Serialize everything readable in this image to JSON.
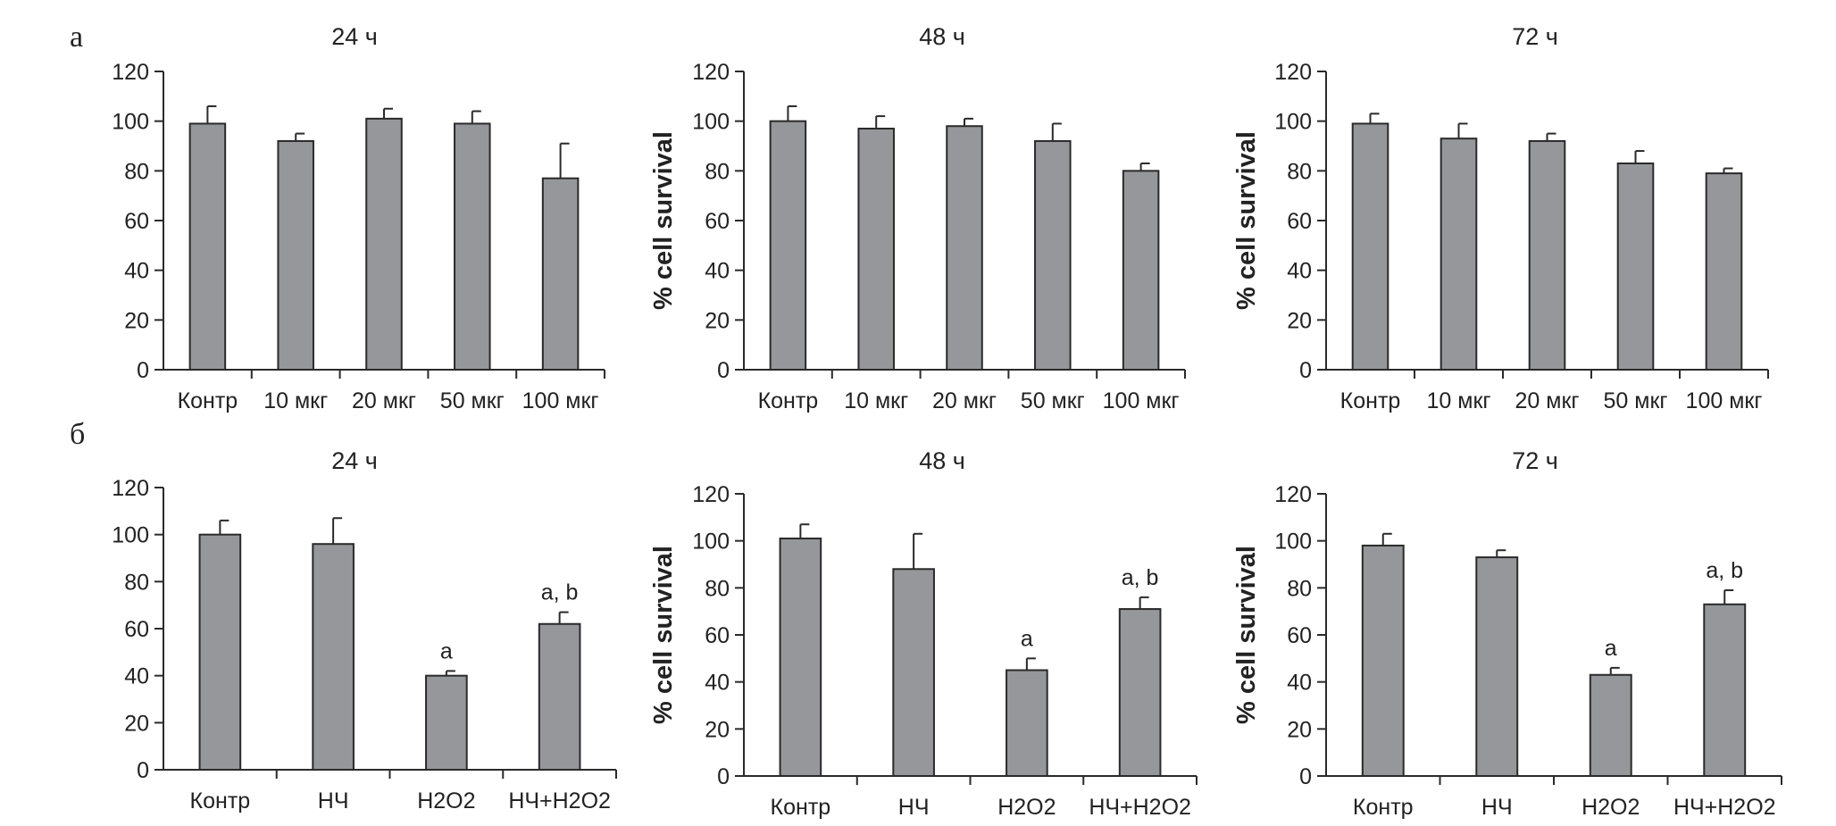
{
  "colors": {
    "bar_fill": "#96979a",
    "bar_stroke": "#2a2a2a",
    "axis": "#2a2a2a",
    "text": "#222222"
  },
  "panel_labels": [
    "а",
    "б"
  ],
  "chart_data": [
    {
      "type": "bar",
      "title": "24 ч",
      "xlabel": "",
      "ylabel": "",
      "ylim": [
        0,
        120
      ],
      "yticks": [
        "0",
        "20",
        "40",
        "60",
        "80",
        "100",
        "120"
      ],
      "categories": [
        "Контр",
        "10 мкг",
        "20 мкг",
        "50 мкг",
        "100 мкг"
      ],
      "values": [
        99,
        92,
        101,
        99,
        77
      ],
      "errors": [
        7,
        3,
        4,
        5,
        14
      ],
      "annotations": [
        "",
        "",
        "",
        "",
        ""
      ]
    },
    {
      "type": "bar",
      "title": "48 ч",
      "xlabel": "",
      "ylabel": "% cell survival",
      "ylim": [
        0,
        120
      ],
      "yticks": [
        "0",
        "20",
        "40",
        "60",
        "80",
        "100",
        "120"
      ],
      "categories": [
        "Контр",
        "10 мкг",
        "20 мкг",
        "50 мкг",
        "100 мкг"
      ],
      "values": [
        100,
        97,
        98,
        92,
        80
      ],
      "errors": [
        6,
        5,
        3,
        7,
        3
      ],
      "annotations": [
        "",
        "",
        "",
        "",
        ""
      ]
    },
    {
      "type": "bar",
      "title": "72 ч",
      "xlabel": "",
      "ylabel": "% cell survival",
      "ylim": [
        0,
        120
      ],
      "yticks": [
        "0",
        "20",
        "40",
        "60",
        "80",
        "100",
        "120"
      ],
      "categories": [
        "Контр",
        "10 мкг",
        "20 мкг",
        "50 мкг",
        "100 мкг"
      ],
      "values": [
        99,
        93,
        92,
        83,
        79
      ],
      "errors": [
        4,
        6,
        3,
        5,
        2
      ],
      "annotations": [
        "",
        "",
        "",
        "",
        ""
      ]
    },
    {
      "type": "bar",
      "title": "24 ч",
      "xlabel": "",
      "ylabel": "",
      "ylim": [
        0,
        120
      ],
      "yticks": [
        "0",
        "20",
        "40",
        "60",
        "80",
        "100",
        "120"
      ],
      "categories": [
        "Контр",
        "НЧ",
        "H2O2",
        "НЧ+H2O2"
      ],
      "values": [
        100,
        96,
        40,
        62
      ],
      "errors": [
        6,
        11,
        2,
        5
      ],
      "annotations": [
        "",
        "",
        "a",
        "a, b"
      ]
    },
    {
      "type": "bar",
      "title": "48 ч",
      "xlabel": "",
      "ylabel": "% cell survival",
      "ylim": [
        0,
        120
      ],
      "yticks": [
        "0",
        "20",
        "40",
        "60",
        "80",
        "100",
        "120"
      ],
      "categories": [
        "Контр",
        "НЧ",
        "H2O2",
        "НЧ+H2O2"
      ],
      "values": [
        101,
        88,
        45,
        71
      ],
      "errors": [
        6,
        15,
        5,
        5
      ],
      "annotations": [
        "",
        "",
        "a",
        "a, b"
      ]
    },
    {
      "type": "bar",
      "title": "72 ч",
      "xlabel": "",
      "ylabel": "% cell survival",
      "ylim": [
        0,
        120
      ],
      "yticks": [
        "0",
        "20",
        "40",
        "60",
        "80",
        "100",
        "120"
      ],
      "categories": [
        "Контр",
        "НЧ",
        "H2O2",
        "НЧ+H2O2"
      ],
      "values": [
        98,
        93,
        43,
        73
      ],
      "errors": [
        5,
        3,
        3,
        6
      ],
      "annotations": [
        "",
        "",
        "a",
        "a, b"
      ]
    }
  ]
}
